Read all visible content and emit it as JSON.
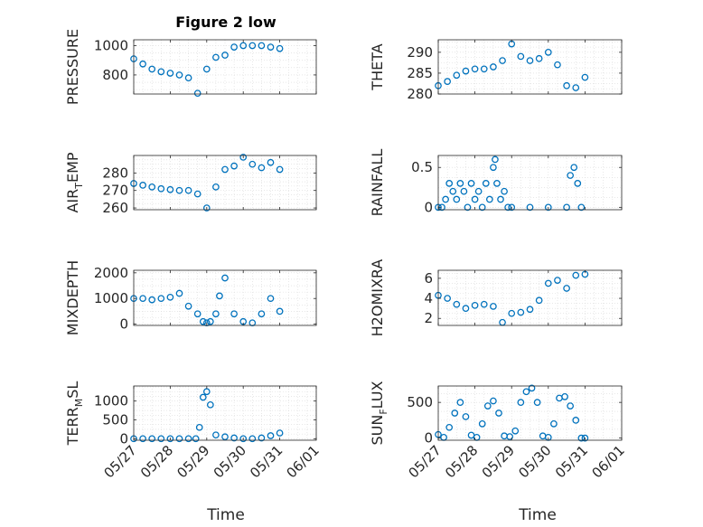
{
  "figure": {
    "title": "Figure 2 low",
    "xlabel": "Time",
    "x_tick_labels": [
      "05/27",
      "05/28",
      "05/29",
      "05/30",
      "05/31",
      "06/01"
    ]
  },
  "colors": {
    "marker": "#0072BD",
    "grid": "#d9d9d9",
    "axis": "#262626"
  },
  "chart_data": [
    {
      "type": "scatter",
      "ylabel": "PRESSURE",
      "ylabel_sub": "",
      "ylabel_rest": "",
      "x_range": [
        "05/27",
        "05/31"
      ],
      "ylim": [
        670,
        1040
      ],
      "yticks": [
        800,
        1000
      ],
      "x": [
        0,
        0.25,
        0.5,
        0.75,
        1,
        1.25,
        1.5,
        1.75,
        2,
        2.25,
        2.5,
        2.75,
        3,
        3.25,
        3.5,
        3.75,
        4
      ],
      "values": [
        910,
        875,
        840,
        822,
        812,
        800,
        780,
        675,
        840,
        920,
        935,
        990,
        1000,
        1000,
        1000,
        990,
        980
      ],
      "series": [
        {
          "name": "",
          "values": [
            910,
            875,
            840,
            822,
            812,
            800,
            780,
            675,
            840,
            920,
            935,
            990,
            1000,
            1000,
            1000,
            990,
            980
          ]
        }
      ]
    },
    {
      "type": "scatter",
      "ylabel": "THETA",
      "ylabel_sub": "",
      "ylabel_rest": "",
      "x_range": [
        "05/27",
        "05/31"
      ],
      "ylim": [
        280,
        293
      ],
      "yticks": [
        280,
        285,
        290
      ],
      "x": [
        0,
        0.25,
        0.5,
        0.75,
        1,
        1.25,
        1.5,
        1.75,
        2,
        2.25,
        2.5,
        2.75,
        3,
        3.25,
        3.5,
        3.75,
        4
      ],
      "values": [
        282,
        283,
        284.5,
        285.5,
        286,
        286,
        286.5,
        288,
        292,
        289,
        288,
        288.5,
        290,
        287,
        282,
        281.5,
        284
      ],
      "series": [
        {
          "name": "",
          "values": [
            282,
            283,
            284.5,
            285.5,
            286,
            286,
            286.5,
            288,
            292,
            289,
            288,
            288.5,
            290,
            287,
            282,
            281.5,
            284
          ]
        }
      ]
    },
    {
      "type": "scatter",
      "ylabel": "AIR",
      "ylabel_sub": "T",
      "ylabel_rest": "EMP",
      "x_range": [
        "05/27",
        "05/31"
      ],
      "ylim": [
        259,
        290
      ],
      "yticks": [
        260,
        270,
        280
      ],
      "x": [
        0,
        0.25,
        0.5,
        0.75,
        1,
        1.25,
        1.5,
        1.75,
        2,
        2.25,
        2.5,
        2.75,
        3,
        3.25,
        3.5,
        3.75,
        4
      ],
      "values": [
        274,
        273,
        272,
        271,
        270.5,
        270,
        270,
        268,
        260,
        272,
        282,
        284,
        289,
        285,
        283,
        286,
        282
      ],
      "series": [
        {
          "name": "",
          "values": [
            274,
            273,
            272,
            271,
            270.5,
            270,
            270,
            268,
            260,
            272,
            282,
            284,
            289,
            285,
            283,
            286,
            282
          ]
        }
      ]
    },
    {
      "type": "scatter",
      "ylabel": "RAINFALL",
      "ylabel_sub": "",
      "ylabel_rest": "",
      "x_range": [
        "05/27",
        "05/31"
      ],
      "ylim": [
        -0.03,
        0.65
      ],
      "yticks": [
        0,
        0.5
      ],
      "x": [
        0,
        0.1,
        0.2,
        0.3,
        0.4,
        0.5,
        0.6,
        0.7,
        0.8,
        0.9,
        1.0,
        1.1,
        1.2,
        1.3,
        1.4,
        1.5,
        1.55,
        1.6,
        1.7,
        1.8,
        1.9,
        2.0,
        2.5,
        3.0,
        3.5,
        3.6,
        3.7,
        3.8,
        3.9
      ],
      "values": [
        0,
        0,
        0.1,
        0.3,
        0.2,
        0.1,
        0.3,
        0.2,
        0,
        0.3,
        0.1,
        0.2,
        0,
        0.3,
        0.1,
        0.5,
        0.6,
        0.3,
        0.1,
        0.2,
        0,
        0,
        0,
        0,
        0,
        0.4,
        0.5,
        0.3,
        0
      ],
      "series": [
        {
          "name": "",
          "values": [
            0,
            0,
            0.1,
            0.3,
            0.2,
            0.1,
            0.3,
            0.2,
            0,
            0.3,
            0.1,
            0.2,
            0,
            0.3,
            0.1,
            0.5,
            0.6,
            0.3,
            0.1,
            0.2,
            0,
            0,
            0,
            0,
            0,
            0.4,
            0.5,
            0.3,
            0
          ]
        }
      ]
    },
    {
      "type": "scatter",
      "ylabel": "MIXDEPTH",
      "ylabel_sub": "",
      "ylabel_rest": "",
      "x_range": [
        "05/27",
        "05/31"
      ],
      "ylim": [
        -50,
        2100
      ],
      "yticks": [
        0,
        1000,
        2000
      ],
      "x": [
        0,
        0.25,
        0.5,
        0.75,
        1,
        1.25,
        1.5,
        1.75,
        1.9,
        2,
        2.1,
        2.25,
        2.35,
        2.5,
        2.75,
        3,
        3.25,
        3.5,
        3.75,
        4
      ],
      "values": [
        1000,
        1000,
        950,
        1000,
        1050,
        1200,
        700,
        400,
        100,
        50,
        100,
        400,
        1100,
        1800,
        400,
        100,
        50,
        400,
        1000,
        500
      ],
      "series": [
        {
          "name": "",
          "values": [
            1000,
            1000,
            950,
            1000,
            1050,
            1200,
            700,
            400,
            100,
            50,
            100,
            400,
            1100,
            1800,
            400,
            100,
            50,
            400,
            1000,
            500
          ]
        }
      ]
    },
    {
      "type": "scatter",
      "ylabel": "H2OMIXRA",
      "ylabel_sub": "",
      "ylabel_rest": "",
      "x_range": [
        "05/27",
        "05/31"
      ],
      "ylim": [
        1.3,
        6.8
      ],
      "yticks": [
        2,
        4,
        6
      ],
      "x": [
        0,
        0.25,
        0.5,
        0.75,
        1,
        1.25,
        1.5,
        1.75,
        2,
        2.25,
        2.5,
        2.75,
        3,
        3.25,
        3.5,
        3.75,
        4
      ],
      "values": [
        4.3,
        4.0,
        3.4,
        3.0,
        3.3,
        3.4,
        3.2,
        1.6,
        2.5,
        2.6,
        2.9,
        3.8,
        5.5,
        5.8,
        5.0,
        6.3,
        6.4
      ],
      "series": [
        {
          "name": "",
          "values": [
            4.3,
            4.0,
            3.4,
            3.0,
            3.3,
            3.4,
            3.2,
            1.6,
            2.5,
            2.6,
            2.9,
            3.8,
            5.5,
            5.8,
            5.0,
            6.3,
            6.4
          ]
        }
      ]
    },
    {
      "type": "scatter",
      "ylabel": "TERR",
      "ylabel_sub": "M",
      "ylabel_rest": "SL",
      "x_range": [
        "05/27",
        "05/31"
      ],
      "ylim": [
        -40,
        1400
      ],
      "yticks": [
        0,
        500,
        1000
      ],
      "x": [
        0,
        0.25,
        0.5,
        0.75,
        1,
        1.25,
        1.5,
        1.7,
        1.8,
        1.9,
        2.0,
        2.1,
        2.25,
        2.5,
        2.75,
        3,
        3.25,
        3.5,
        3.75,
        4
      ],
      "values": [
        0,
        0,
        0,
        0,
        0,
        0,
        0,
        0,
        300,
        1100,
        1250,
        900,
        100,
        50,
        20,
        0,
        0,
        20,
        80,
        150
      ],
      "series": [
        {
          "name": "",
          "values": [
            0,
            0,
            0,
            0,
            0,
            0,
            0,
            0,
            300,
            1100,
            1250,
            900,
            100,
            50,
            20,
            0,
            0,
            20,
            80,
            150
          ]
        }
      ]
    },
    {
      "type": "scatter",
      "ylabel": "SUN",
      "ylabel_sub": "F",
      "ylabel_rest": "LUX",
      "x_range": [
        "05/27",
        "05/31"
      ],
      "ylim": [
        -30,
        730
      ],
      "yticks": [
        0,
        500
      ],
      "x": [
        0,
        0.15,
        0.3,
        0.45,
        0.6,
        0.75,
        0.9,
        1.05,
        1.2,
        1.35,
        1.5,
        1.65,
        1.8,
        1.95,
        2.1,
        2.25,
        2.4,
        2.55,
        2.7,
        2.85,
        3.0,
        3.15,
        3.3,
        3.45,
        3.6,
        3.75,
        3.9,
        4.0
      ],
      "values": [
        50,
        10,
        150,
        350,
        500,
        300,
        40,
        10,
        200,
        450,
        520,
        350,
        30,
        20,
        100,
        500,
        650,
        700,
        500,
        30,
        10,
        200,
        560,
        580,
        450,
        250,
        0,
        0
      ],
      "series": [
        {
          "name": "",
          "values": [
            50,
            10,
            150,
            350,
            500,
            300,
            40,
            10,
            200,
            450,
            520,
            350,
            30,
            20,
            100,
            500,
            650,
            700,
            500,
            30,
            10,
            200,
            560,
            580,
            450,
            250,
            0,
            0
          ]
        }
      ]
    }
  ]
}
